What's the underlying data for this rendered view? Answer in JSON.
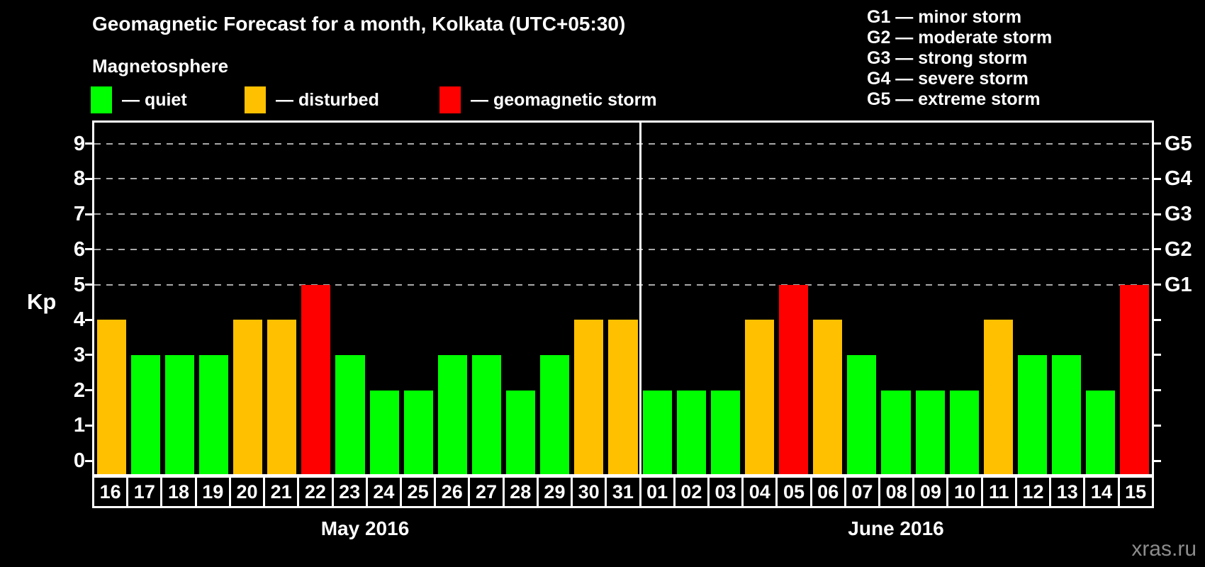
{
  "title": "Geomagnetic Forecast for a month, Kolkata (UTC+05:30)",
  "subtitle": "Magnetosphere",
  "legend": {
    "items": [
      {
        "name": "quiet",
        "label": "— quiet",
        "color": "#00FF00"
      },
      {
        "name": "disturbed",
        "label": "— disturbed",
        "color": "#FFC000"
      },
      {
        "name": "storm",
        "label": "— geomagnetic storm",
        "color": "#FF0000"
      }
    ]
  },
  "g_legend": [
    "G1 — minor storm",
    "G2 — moderate storm",
    "G3 — strong storm",
    "G4 — severe storm",
    "G5 — extreme storm"
  ],
  "watermark": "xras.ru",
  "chart_data": {
    "type": "bar",
    "title": "Geomagnetic Forecast for a month, Kolkata (UTC+05:30)",
    "ylabel": "Kp",
    "ylim": [
      0,
      10
    ],
    "y_ticks": [
      0,
      1,
      2,
      3,
      4,
      5,
      6,
      7,
      8,
      9
    ],
    "grid": "horizontal dashed gridlines at Kp 5-9 only",
    "grid_levels": [
      5,
      6,
      7,
      8,
      9
    ],
    "g_axis": [
      {
        "kp": 5,
        "label": "G1"
      },
      {
        "kp": 6,
        "label": "G2"
      },
      {
        "kp": 7,
        "label": "G3"
      },
      {
        "kp": 8,
        "label": "G4"
      },
      {
        "kp": 9,
        "label": "G5"
      }
    ],
    "thresholds": {
      "quiet_max": 3,
      "disturbed": 4,
      "storm_min": 5
    },
    "colors": {
      "quiet": "#00FF00",
      "disturbed": "#FFC000",
      "storm": "#FF0000"
    },
    "series": [
      {
        "month": "May 2016",
        "days": [
          "16",
          "17",
          "18",
          "19",
          "20",
          "21",
          "22",
          "23",
          "24",
          "25",
          "26",
          "27",
          "28",
          "29",
          "30",
          "31"
        ],
        "kp": [
          4,
          3,
          3,
          3,
          4,
          4,
          5,
          3,
          2,
          2,
          3,
          3,
          2,
          3,
          4,
          4
        ]
      },
      {
        "month": "June 2016",
        "days": [
          "01",
          "02",
          "03",
          "04",
          "05",
          "06",
          "07",
          "08",
          "09",
          "10",
          "11",
          "12",
          "13",
          "14",
          "15"
        ],
        "kp": [
          2,
          2,
          2,
          4,
          5,
          4,
          3,
          2,
          2,
          2,
          4,
          3,
          3,
          2,
          5
        ]
      }
    ]
  }
}
